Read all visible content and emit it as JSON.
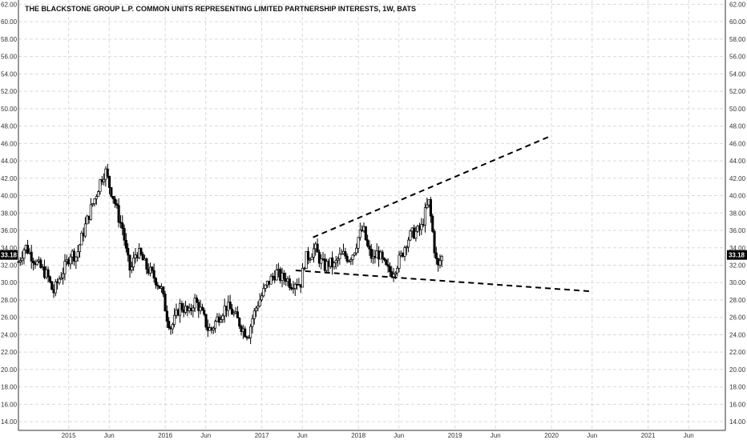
{
  "chart_data": {
    "type": "candlestick",
    "title": "THE BLACKSTONE GROUP L.P. COMMON UNITS REPRESENTING LIMITED PARTNERSHIP INTERESTS, 1W, BATS",
    "interval": "1W",
    "last_price": "33.18",
    "ylim": [
      13.0,
      62.5
    ],
    "y_ticks": [
      "14.00",
      "16.00",
      "18.00",
      "20.00",
      "22.00",
      "24.00",
      "26.00",
      "28.00",
      "30.00",
      "32.00",
      "34.00",
      "36.00",
      "38.00",
      "40.00",
      "42.00",
      "44.00",
      "46.00",
      "48.00",
      "50.00",
      "52.00",
      "54.00",
      "56.00",
      "58.00",
      "60.00",
      "62.00"
    ],
    "x_ticks": [
      {
        "label": "2015",
        "t": 2015.0
      },
      {
        "label": "Jun",
        "t": 2015.42
      },
      {
        "label": "2016",
        "t": 2016.0
      },
      {
        "label": "Jun",
        "t": 2016.42
      },
      {
        "label": "2017",
        "t": 2017.0
      },
      {
        "label": "Jun",
        "t": 2017.42
      },
      {
        "label": "2018",
        "t": 2018.0
      },
      {
        "label": "Jun",
        "t": 2018.42
      },
      {
        "label": "2019",
        "t": 2019.0
      },
      {
        "label": "Jun",
        "t": 2019.42
      },
      {
        "label": "2020",
        "t": 2020.0
      },
      {
        "label": "Jun",
        "t": 2020.42
      },
      {
        "label": "2021",
        "t": 2021.0
      },
      {
        "label": "Jun",
        "t": 2021.42
      }
    ],
    "xlim": [
      2014.48,
      2021.8
    ],
    "price_path": [
      [
        2014.48,
        32.4
      ],
      [
        2014.55,
        34.2
      ],
      [
        2014.62,
        33.0
      ],
      [
        2014.7,
        31.8
      ],
      [
        2014.78,
        30.8
      ],
      [
        2014.84,
        28.8
      ],
      [
        2014.9,
        30.4
      ],
      [
        2014.97,
        32.0
      ],
      [
        2015.02,
        33.4
      ],
      [
        2015.08,
        33.0
      ],
      [
        2015.13,
        35.0
      ],
      [
        2015.18,
        36.8
      ],
      [
        2015.23,
        38.5
      ],
      [
        2015.28,
        40.0
      ],
      [
        2015.33,
        41.8
      ],
      [
        2015.38,
        42.9
      ],
      [
        2015.42,
        41.2
      ],
      [
        2015.47,
        39.6
      ],
      [
        2015.52,
        37.4
      ],
      [
        2015.56,
        36.2
      ],
      [
        2015.6,
        33.2
      ],
      [
        2015.64,
        31.2
      ],
      [
        2015.7,
        33.6
      ],
      [
        2015.75,
        33.0
      ],
      [
        2015.8,
        31.8
      ],
      [
        2015.86,
        31.0
      ],
      [
        2015.91,
        30.2
      ],
      [
        2015.96,
        29.2
      ],
      [
        2016.02,
        26.0
      ],
      [
        2016.06,
        24.8
      ],
      [
        2016.1,
        25.8
      ],
      [
        2016.15,
        27.3
      ],
      [
        2016.2,
        27.0
      ],
      [
        2016.25,
        26.4
      ],
      [
        2016.3,
        28.0
      ],
      [
        2016.35,
        27.2
      ],
      [
        2016.4,
        25.9
      ],
      [
        2016.44,
        24.7
      ],
      [
        2016.48,
        24.6
      ],
      [
        2016.53,
        25.7
      ],
      [
        2016.58,
        26.5
      ],
      [
        2016.63,
        27.3
      ],
      [
        2016.68,
        26.8
      ],
      [
        2016.72,
        26.2
      ],
      [
        2016.77,
        25.3
      ],
      [
        2016.82,
        24.4
      ],
      [
        2016.86,
        24.0
      ],
      [
        2016.9,
        25.8
      ],
      [
        2016.95,
        27.4
      ],
      [
        2017.0,
        28.5
      ],
      [
        2017.05,
        29.7
      ],
      [
        2017.1,
        30.5
      ],
      [
        2017.15,
        31.2
      ],
      [
        2017.2,
        30.5
      ],
      [
        2017.25,
        30.6
      ],
      [
        2017.3,
        29.8
      ],
      [
        2017.35,
        30.2
      ],
      [
        2017.4,
        29.8
      ],
      [
        2017.45,
        32.8
      ],
      [
        2017.5,
        33.2
      ],
      [
        2017.55,
        34.0
      ],
      [
        2017.6,
        32.6
      ],
      [
        2017.65,
        31.8
      ],
      [
        2017.7,
        32.3
      ],
      [
        2017.75,
        31.9
      ],
      [
        2017.8,
        32.9
      ],
      [
        2017.85,
        33.2
      ],
      [
        2017.9,
        32.8
      ],
      [
        2017.95,
        33.5
      ],
      [
        2018.0,
        35.2
      ],
      [
        2018.05,
        36.2
      ],
      [
        2018.1,
        33.8
      ],
      [
        2018.15,
        32.6
      ],
      [
        2018.2,
        33.5
      ],
      [
        2018.25,
        32.4
      ],
      [
        2018.3,
        31.4
      ],
      [
        2018.35,
        31.2
      ],
      [
        2018.4,
        32.1
      ],
      [
        2018.45,
        33.2
      ],
      [
        2018.5,
        34.8
      ],
      [
        2018.55,
        35.6
      ],
      [
        2018.6,
        35.8
      ],
      [
        2018.65,
        36.2
      ],
      [
        2018.7,
        38.4
      ],
      [
        2018.73,
        39.2
      ],
      [
        2018.76,
        36.6
      ],
      [
        2018.79,
        33.7
      ],
      [
        2018.82,
        31.5
      ],
      [
        2018.85,
        32.7
      ],
      [
        2018.88,
        33.18
      ]
    ],
    "trendlines": [
      {
        "style": "dashed",
        "from": {
          "t": 2017.53,
          "p": 35.2
        },
        "to": {
          "t": 2020.0,
          "p": 46.9
        }
      },
      {
        "style": "dashed",
        "from": {
          "t": 2017.35,
          "p": 31.4
        },
        "to": {
          "t": 2020.4,
          "p": 29.0
        }
      }
    ],
    "grid": true
  }
}
